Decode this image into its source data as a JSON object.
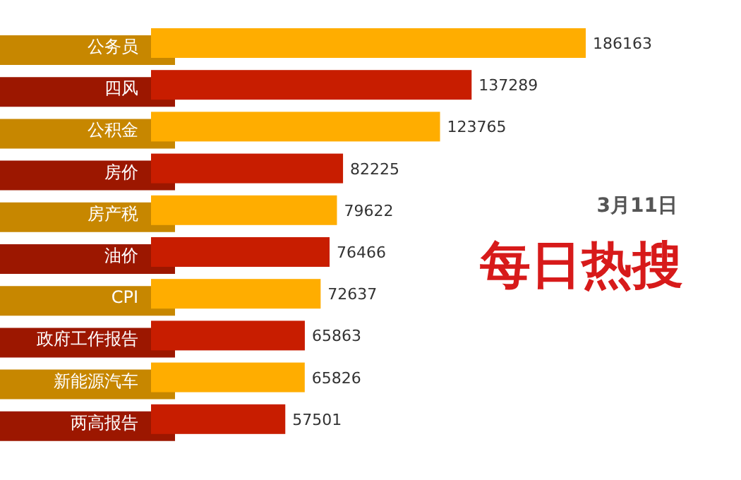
{
  "chart_data": {
    "type": "bar",
    "orientation": "horizontal",
    "title": "每日热搜",
    "subtitle": "3月11日",
    "categories": [
      "公务员",
      "四风",
      "公积金",
      "房价",
      "房产税",
      "油价",
      "CPI",
      "政府工作报告",
      "新能源汽车",
      "两高报告"
    ],
    "values": [
      186163,
      137289,
      123765,
      82225,
      79622,
      76466,
      72637,
      65863,
      65826,
      57501
    ],
    "colors": [
      "#ffad00",
      "#c81d00",
      "#ffad00",
      "#c81d00",
      "#ffad00",
      "#c81d00",
      "#ffad00",
      "#c81d00",
      "#ffad00",
      "#c81d00"
    ],
    "data_labels": true
  }
}
